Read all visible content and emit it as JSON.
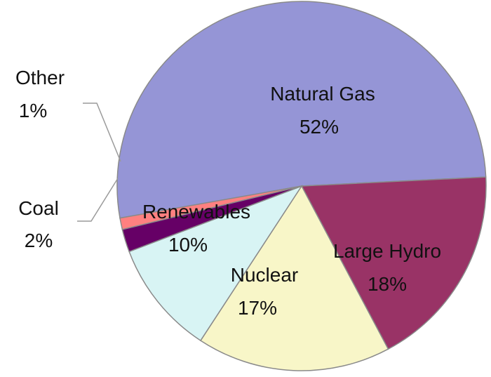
{
  "chart_data": {
    "type": "pie",
    "title": "",
    "slices": [
      {
        "name": "Natural Gas",
        "pct_label": "52%",
        "value": 52,
        "color": "#9595d6"
      },
      {
        "name": "Large Hydro",
        "pct_label": "18%",
        "value": 18,
        "color": "#993366"
      },
      {
        "name": "Nuclear",
        "pct_label": "17%",
        "value": 17,
        "color": "#f8f6c8"
      },
      {
        "name": "Renewables",
        "pct_label": "10%",
        "value": 10,
        "color": "#d8f4f4"
      },
      {
        "name": "Coal",
        "pct_label": "2%",
        "value": 2,
        "color": "#660066"
      },
      {
        "name": "Other",
        "pct_label": "1%",
        "value": 1,
        "color": "#ff8080"
      }
    ],
    "legend": "none",
    "slice_border_color": "#8a8a8a"
  }
}
